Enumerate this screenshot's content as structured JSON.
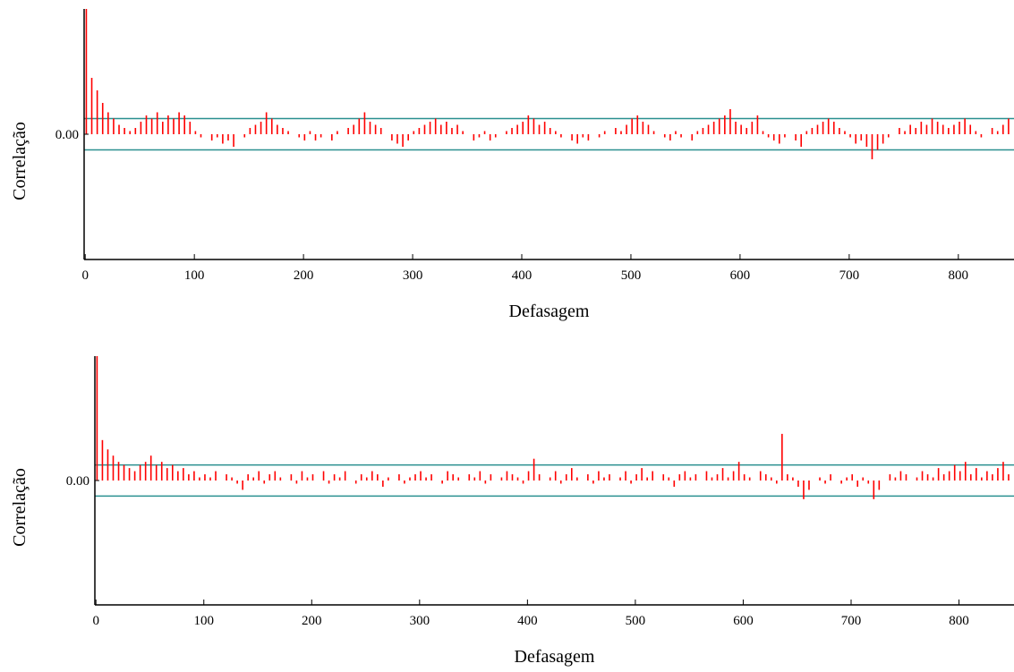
{
  "chart_data": [
    {
      "type": "bar",
      "x_label": "Defasagem",
      "y_label": "Correlação",
      "color": "#ff0000",
      "reference_lines": [
        0.05,
        -0.05
      ],
      "reference_line_color": "#2a9090",
      "xlim": [
        -1,
        851
      ],
      "xticks": [
        0,
        100,
        200,
        300,
        400,
        500,
        600,
        700,
        800
      ],
      "ylim": [
        -0.4,
        0.4
      ],
      "yticks": [
        {
          "value": 0,
          "label": "0.00"
        }
      ],
      "x": [
        1,
        6,
        11,
        16,
        21,
        26,
        31,
        36,
        41,
        46,
        51,
        56,
        61,
        66,
        71,
        76,
        81,
        86,
        91,
        96,
        101,
        106,
        111,
        116,
        121,
        126,
        131,
        136,
        141,
        146,
        151,
        156,
        161,
        166,
        171,
        176,
        181,
        186,
        191,
        196,
        201,
        206,
        211,
        216,
        221,
        226,
        231,
        236,
        241,
        246,
        251,
        256,
        261,
        266,
        271,
        276,
        281,
        286,
        291,
        296,
        301,
        306,
        311,
        316,
        321,
        326,
        331,
        336,
        341,
        346,
        351,
        356,
        361,
        366,
        371,
        376,
        381,
        386,
        391,
        396,
        401,
        406,
        411,
        416,
        421,
        426,
        431,
        436,
        441,
        446,
        451,
        456,
        461,
        466,
        471,
        476,
        481,
        486,
        491,
        496,
        501,
        506,
        511,
        516,
        521,
        526,
        531,
        536,
        541,
        546,
        551,
        556,
        561,
        566,
        571,
        576,
        581,
        586,
        591,
        596,
        601,
        606,
        611,
        616,
        621,
        626,
        631,
        636,
        641,
        646,
        651,
        656,
        661,
        666,
        671,
        676,
        681,
        686,
        691,
        696,
        701,
        706,
        711,
        716,
        721,
        726,
        731,
        736,
        741,
        746,
        751,
        756,
        761,
        766,
        771,
        776,
        781,
        786,
        791,
        796,
        801,
        806,
        811,
        816,
        821,
        826,
        831,
        836,
        841,
        846
      ],
      "values": [
        0.4,
        0.18,
        0.14,
        0.1,
        0.07,
        0.05,
        0.03,
        0.02,
        0.01,
        0.02,
        0.04,
        0.06,
        0.05,
        0.07,
        0.04,
        0.06,
        0.05,
        0.07,
        0.06,
        0.04,
        0.01,
        -0.01,
        0.0,
        -0.02,
        -0.01,
        -0.03,
        -0.02,
        -0.04,
        0.0,
        -0.01,
        0.02,
        0.03,
        0.04,
        0.07,
        0.05,
        0.03,
        0.02,
        0.01,
        0.0,
        -0.01,
        -0.02,
        0.01,
        -0.02,
        -0.01,
        0.0,
        -0.02,
        0.01,
        0.0,
        0.02,
        0.03,
        0.05,
        0.07,
        0.04,
        0.03,
        0.02,
        0.0,
        -0.02,
        -0.03,
        -0.04,
        -0.02,
        0.01,
        0.02,
        0.03,
        0.04,
        0.05,
        0.03,
        0.04,
        0.02,
        0.03,
        0.01,
        0.0,
        -0.02,
        -0.01,
        0.01,
        -0.02,
        -0.01,
        0.0,
        0.01,
        0.02,
        0.03,
        0.04,
        0.06,
        0.05,
        0.03,
        0.04,
        0.02,
        0.01,
        -0.01,
        0.0,
        -0.02,
        -0.03,
        -0.01,
        -0.02,
        0.0,
        -0.01,
        0.01,
        0.0,
        0.02,
        0.01,
        0.03,
        0.05,
        0.06,
        0.04,
        0.03,
        0.01,
        0.0,
        -0.01,
        -0.02,
        0.01,
        -0.01,
        0.0,
        -0.02,
        0.01,
        0.02,
        0.03,
        0.04,
        0.05,
        0.06,
        0.08,
        0.04,
        0.03,
        0.02,
        0.04,
        0.06,
        0.01,
        -0.01,
        -0.02,
        -0.03,
        -0.01,
        0.0,
        -0.02,
        -0.04,
        0.01,
        0.02,
        0.03,
        0.04,
        0.05,
        0.04,
        0.02,
        0.01,
        -0.01,
        -0.03,
        -0.02,
        -0.04,
        -0.08,
        -0.05,
        -0.03,
        -0.01,
        0.0,
        0.02,
        0.01,
        0.03,
        0.02,
        0.04,
        0.03,
        0.05,
        0.04,
        0.03,
        0.02,
        0.03,
        0.04,
        0.05,
        0.03,
        0.01,
        -0.01,
        0.0,
        0.02,
        0.01,
        0.03,
        0.05
      ]
    },
    {
      "type": "bar",
      "x_label": "Defasagem",
      "y_label": "Correlação",
      "color": "#ff0000",
      "reference_lines": [
        0.05,
        -0.05
      ],
      "reference_line_color": "#2a9090",
      "xlim": [
        -1,
        851
      ],
      "xticks": [
        0,
        100,
        200,
        300,
        400,
        500,
        600,
        700,
        800
      ],
      "ylim": [
        -0.4,
        0.4
      ],
      "yticks": [
        {
          "value": 0,
          "label": "0.00"
        }
      ],
      "x": [
        1,
        6,
        11,
        16,
        21,
        26,
        31,
        36,
        41,
        46,
        51,
        56,
        61,
        66,
        71,
        76,
        81,
        86,
        91,
        96,
        101,
        106,
        111,
        116,
        121,
        126,
        131,
        136,
        141,
        146,
        151,
        156,
        161,
        166,
        171,
        176,
        181,
        186,
        191,
        196,
        201,
        206,
        211,
        216,
        221,
        226,
        231,
        236,
        241,
        246,
        251,
        256,
        261,
        266,
        271,
        276,
        281,
        286,
        291,
        296,
        301,
        306,
        311,
        316,
        321,
        326,
        331,
        336,
        341,
        346,
        351,
        356,
        361,
        366,
        371,
        376,
        381,
        386,
        391,
        396,
        401,
        406,
        411,
        416,
        421,
        426,
        431,
        436,
        441,
        446,
        451,
        456,
        461,
        466,
        471,
        476,
        481,
        486,
        491,
        496,
        501,
        506,
        511,
        516,
        521,
        526,
        531,
        536,
        541,
        546,
        551,
        556,
        561,
        566,
        571,
        576,
        581,
        586,
        591,
        596,
        601,
        606,
        611,
        616,
        621,
        626,
        631,
        636,
        641,
        646,
        651,
        656,
        661,
        666,
        671,
        676,
        681,
        686,
        691,
        696,
        701,
        706,
        711,
        716,
        721,
        726,
        731,
        736,
        741,
        746,
        751,
        756,
        761,
        766,
        771,
        776,
        781,
        786,
        791,
        796,
        801,
        806,
        811,
        816,
        821,
        826,
        831,
        836,
        841,
        846
      ],
      "values": [
        0.4,
        0.13,
        0.1,
        0.08,
        0.06,
        0.05,
        0.04,
        0.03,
        0.05,
        0.06,
        0.08,
        0.05,
        0.06,
        0.04,
        0.05,
        0.03,
        0.04,
        0.02,
        0.03,
        0.01,
        0.02,
        0.01,
        0.03,
        0.0,
        0.02,
        0.01,
        -0.01,
        -0.03,
        0.02,
        0.01,
        0.03,
        -0.01,
        0.02,
        0.03,
        0.01,
        0.0,
        0.02,
        -0.01,
        0.03,
        0.01,
        0.02,
        0.0,
        0.03,
        -0.01,
        0.02,
        0.01,
        0.03,
        0.0,
        -0.01,
        0.02,
        0.01,
        0.03,
        0.02,
        -0.02,
        0.01,
        0.0,
        0.02,
        -0.01,
        0.01,
        0.02,
        0.03,
        0.01,
        0.02,
        0.0,
        -0.01,
        0.03,
        0.02,
        0.01,
        0.0,
        0.02,
        0.01,
        0.03,
        -0.01,
        0.02,
        0.0,
        0.01,
        0.03,
        0.02,
        0.01,
        -0.01,
        0.03,
        0.07,
        0.02,
        0.0,
        0.01,
        0.03,
        -0.01,
        0.02,
        0.04,
        0.01,
        0.0,
        0.02,
        -0.01,
        0.03,
        0.01,
        0.02,
        0.0,
        0.01,
        0.03,
        -0.01,
        0.02,
        0.04,
        0.01,
        0.03,
        0.0,
        0.02,
        0.01,
        -0.02,
        0.02,
        0.03,
        0.01,
        0.02,
        0.0,
        0.03,
        0.01,
        0.02,
        0.04,
        0.01,
        0.03,
        0.06,
        0.02,
        0.01,
        0.0,
        0.03,
        0.02,
        0.01,
        -0.01,
        0.15,
        0.02,
        0.01,
        -0.02,
        -0.06,
        -0.03,
        0.0,
        0.01,
        -0.01,
        0.02,
        0.0,
        -0.01,
        0.01,
        0.02,
        -0.02,
        0.01,
        -0.01,
        -0.06,
        -0.03,
        0.0,
        0.02,
        0.01,
        0.03,
        0.02,
        0.0,
        0.01,
        0.03,
        0.02,
        0.01,
        0.04,
        0.02,
        0.03,
        0.05,
        0.03,
        0.06,
        0.02,
        0.04,
        0.01,
        0.03,
        0.02,
        0.04,
        0.06,
        0.02
      ]
    }
  ]
}
